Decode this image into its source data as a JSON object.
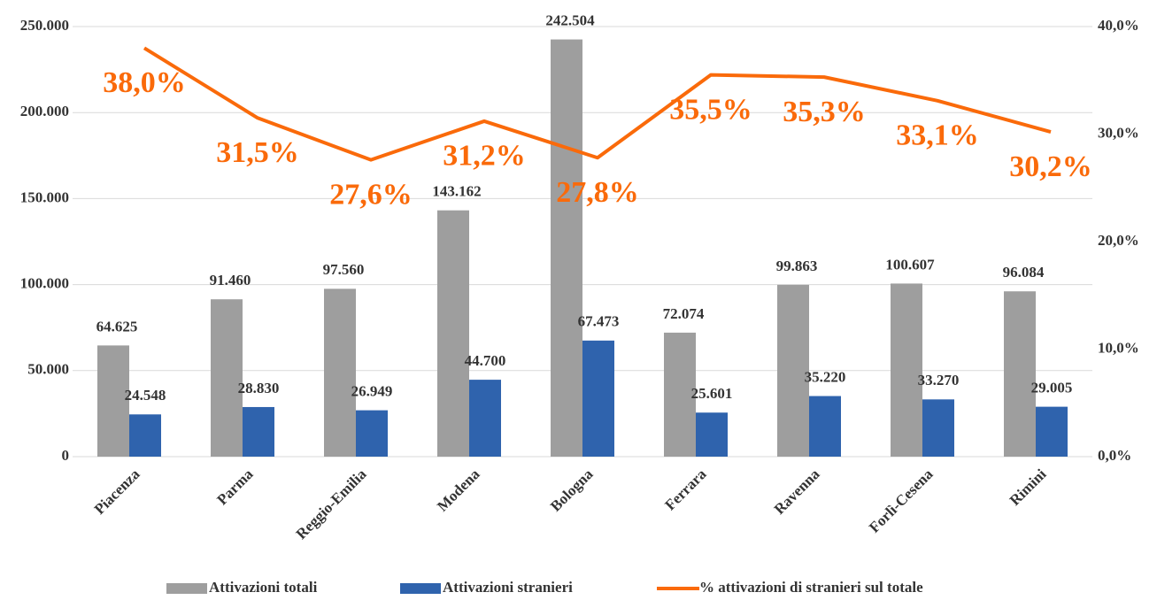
{
  "chart_data": {
    "type": "bar-line",
    "categories": [
      "Piacenza",
      "Parma",
      "Reggio-Emilia",
      "Modena",
      "Bologna",
      "Ferrara",
      "Ravenna",
      "Forlì-Cesena",
      "Rimini"
    ],
    "series": [
      {
        "name": "Attivazioni totali",
        "type": "bar",
        "color": "#9e9e9e",
        "values": [
          64625,
          91460,
          97560,
          143162,
          242504,
          72074,
          99863,
          100607,
          96084
        ],
        "value_labels": [
          "64.625",
          "91.460",
          "97.560",
          "143.162",
          "242.504",
          "72.074",
          "99.863",
          "100.607",
          "96.084"
        ]
      },
      {
        "name": "Attivazioni stranieri",
        "type": "bar",
        "color": "#2f63ad",
        "values": [
          24548,
          28830,
          26949,
          44700,
          67473,
          25601,
          35220,
          33270,
          29005
        ],
        "value_labels": [
          "24.548",
          "28.830",
          "26.949",
          "44.700",
          "67.473",
          "25.601",
          "35.220",
          "33.270",
          "29.005"
        ]
      },
      {
        "name": "% attivazioni di stranieri sul totale",
        "type": "line",
        "axis": "y2",
        "color": "#fa6a0a",
        "values": [
          38.0,
          31.5,
          27.6,
          31.2,
          27.8,
          35.5,
          35.3,
          33.1,
          30.2
        ],
        "value_labels": [
          "38,0%",
          "31,5%",
          "27,6%",
          "31,2%",
          "27,8%",
          "35,5%",
          "35,3%",
          "33,1%",
          "30,2%"
        ]
      }
    ],
    "ylim": [
      0,
      250000
    ],
    "yticks": [
      0,
      {
        "value": 50000,
        "label": "50.000"
      },
      {
        "value": 100000,
        "label": "100.000"
      },
      {
        "value": 150000,
        "label": "150.000"
      },
      {
        "value": 200000,
        "label": "200.000"
      },
      {
        "value": 250000,
        "label": "250.000"
      }
    ],
    "y2lim": [
      0,
      40
    ],
    "y2ticks": [
      {
        "value": 0,
        "label": "0,0%"
      },
      {
        "value": 10,
        "label": "10,0%"
      },
      {
        "value": 20,
        "label": "20,0%"
      },
      {
        "value": 30,
        "label": "30,0%"
      },
      {
        "value": 40,
        "label": "40,0%"
      }
    ],
    "grid": true,
    "legend": "bottom"
  }
}
